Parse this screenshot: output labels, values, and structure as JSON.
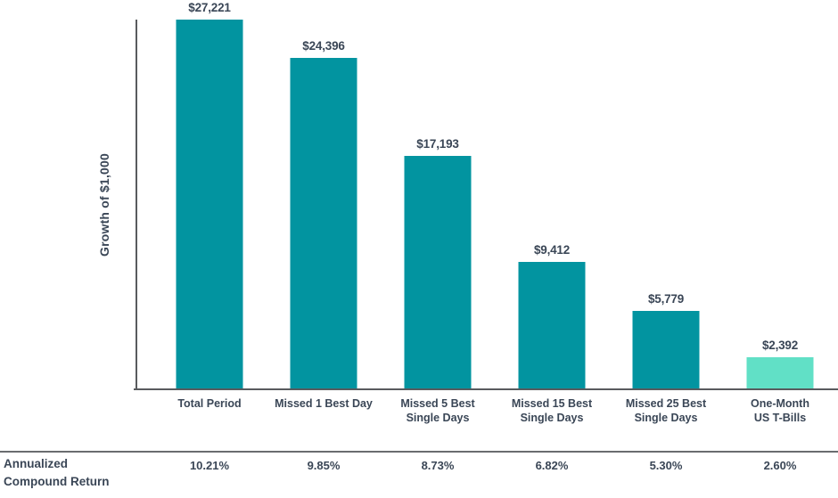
{
  "chart_data": {
    "type": "bar",
    "title": "",
    "xlabel": "",
    "ylabel": "Growth of $1,000",
    "categories": [
      "Total Period",
      "Missed 1 Best Day",
      "Missed 5 Best\nSingle Days",
      "Missed 15 Best\nSingle Days",
      "Missed 25 Best\nSingle Days",
      "One-Month\nUS T-Bills"
    ],
    "values": [
      27221,
      24396,
      17193,
      9412,
      5779,
      2392
    ],
    "value_labels": [
      "$27,221",
      "$24,396",
      "$17,193",
      "$9,412",
      "$5,779",
      "$2,392"
    ],
    "bar_colors": [
      "#0294a0",
      "#0294a0",
      "#0294a0",
      "#0294a0",
      "#0294a0",
      "#61e0c6"
    ],
    "footer_row": {
      "label": "Annualized\nCompound Return",
      "values": [
        "10.21%",
        "9.85%",
        "8.73%",
        "6.82%",
        "5.30%",
        "2.60%"
      ]
    },
    "ylim": [
      0,
      28500
    ],
    "grid": false,
    "legend": false
  },
  "colors": {
    "bar_teal": "#0294a0",
    "bar_mint": "#61e0c6",
    "text": "#3a4656",
    "axis_line": "#595b5e",
    "separator_line": "#6a6c6f"
  }
}
